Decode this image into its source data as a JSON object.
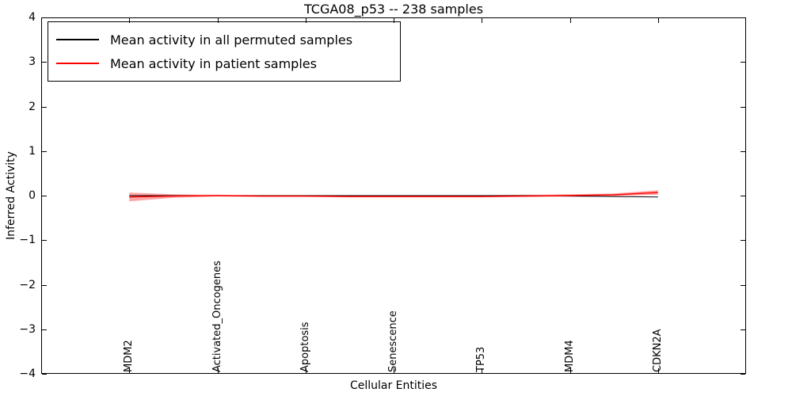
{
  "chart_data": {
    "type": "line",
    "title": "TCGA08_p53 -- 238 samples",
    "xlabel": "Cellular Entities",
    "ylabel": "Inferred Activity",
    "xlim": [
      0,
      8
    ],
    "ylim": [
      -4,
      4
    ],
    "yticks": [
      -4,
      -3,
      -2,
      -1,
      0,
      1,
      2,
      3,
      4
    ],
    "xticks": [
      {
        "pos": 1,
        "label": "MDM2"
      },
      {
        "pos": 2,
        "label": "Activated_Oncogenes"
      },
      {
        "pos": 3,
        "label": "Apoptosis"
      },
      {
        "pos": 4,
        "label": "Senescence"
      },
      {
        "pos": 5,
        "label": "TP53"
      },
      {
        "pos": 6,
        "label": "MDM4"
      },
      {
        "pos": 7,
        "label": "CDKN2A"
      }
    ],
    "grid": false,
    "legend_position": "upper left",
    "x": [
      1,
      1.5,
      2,
      2.5,
      3,
      3.5,
      4,
      4.5,
      5,
      5.5,
      6,
      6.5,
      7
    ],
    "series": [
      {
        "name": "Mean activity in all permuted samples",
        "color": "#000000",
        "values": [
          0,
          0,
          0,
          0,
          0,
          0,
          0,
          0,
          0,
          0,
          -0.01,
          -0.02,
          -0.03
        ]
      },
      {
        "name": "Mean activity in patient samples",
        "color": "#ff0000",
        "values": [
          -0.03,
          -0.01,
          0,
          -0.01,
          -0.01,
          -0.02,
          -0.02,
          -0.02,
          -0.02,
          -0.01,
          0,
          0.02,
          0.07
        ],
        "band_upper": [
          0.07,
          0.03,
          0.02,
          0.01,
          0.01,
          0.01,
          0.01,
          0.01,
          0.01,
          0.02,
          0.03,
          0.05,
          0.12
        ],
        "band_lower": [
          -0.13,
          -0.05,
          -0.02,
          -0.03,
          -0.03,
          -0.04,
          -0.04,
          -0.04,
          -0.04,
          -0.03,
          -0.02,
          -0.01,
          0.02
        ],
        "band_opacity": 0.35
      }
    ]
  }
}
